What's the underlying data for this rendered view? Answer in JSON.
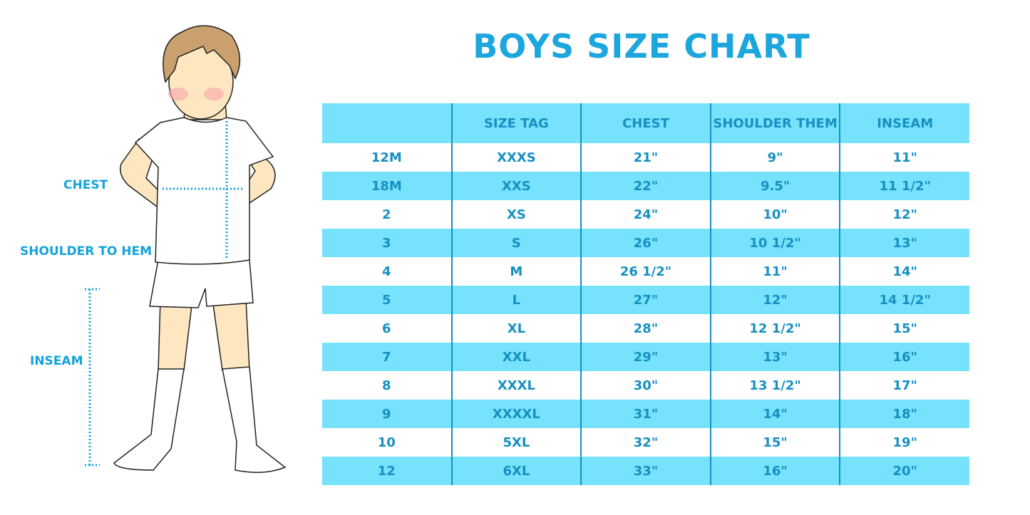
{
  "title": "BOYS SIZE CHART",
  "figure_labels": {
    "chest": "CHEST",
    "shoulder": "SHOULDER TO HEM",
    "inseam": "INSEAM"
  },
  "colors": {
    "title": "#1ba6de",
    "header_bg": "#76e2fc",
    "text": "#1690c2"
  },
  "table": {
    "headers": [
      "",
      "SIZE TAG",
      "CHEST",
      "SHOULDER THEM",
      "INSEAM"
    ],
    "rows": [
      [
        "12M",
        "XXXS",
        "21\"",
        "9\"",
        "11\""
      ],
      [
        "18M",
        "XXS",
        "22\"",
        "9.5\"",
        "11 1/2\""
      ],
      [
        "2",
        "XS",
        "24\"",
        "10\"",
        "12\""
      ],
      [
        "3",
        "S",
        "26\"",
        "10 1/2\"",
        "13\""
      ],
      [
        "4",
        "M",
        "26 1/2\"",
        "11\"",
        "14\""
      ],
      [
        "5",
        "L",
        "27\"",
        "12\"",
        "14 1/2\""
      ],
      [
        "6",
        "XL",
        "28\"",
        "12 1/2\"",
        "15\""
      ],
      [
        "7",
        "XXL",
        "29\"",
        "13\"",
        "16\""
      ],
      [
        "8",
        "XXXL",
        "30\"",
        "13 1/2\"",
        "17\""
      ],
      [
        "9",
        "XXXXL",
        "31\"",
        "14\"",
        "18\""
      ],
      [
        "10",
        "5XL",
        "32\"",
        "15\"",
        "19\""
      ],
      [
        "12",
        "6XL",
        "33\"",
        "16\"",
        "20\""
      ]
    ]
  }
}
